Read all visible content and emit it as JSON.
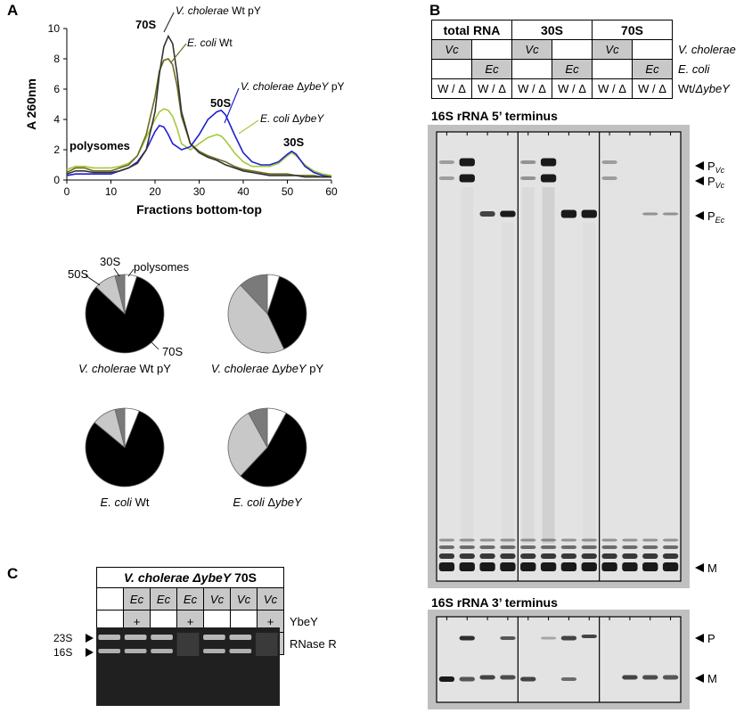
{
  "panels": {
    "a": "A",
    "b": "B",
    "c": "C"
  },
  "chart_data": {
    "type": "line",
    "xlabel": "Fractions bottom-top",
    "ylabel": "A 260nm",
    "xlim": [
      0,
      60
    ],
    "ylim": [
      0,
      10
    ],
    "xticks": [
      0,
      10,
      20,
      30,
      40,
      50,
      60
    ],
    "yticks": [
      0,
      2,
      4,
      6,
      8,
      10
    ],
    "annotations": [
      "70S",
      "50S",
      "30S",
      "polysomes"
    ],
    "series": [
      {
        "name": "V. cholerae Wt pY",
        "color": "#333333",
        "x": [
          0,
          2,
          4,
          6,
          8,
          10,
          12,
          14,
          16,
          18,
          20,
          21,
          22,
          23,
          24,
          25,
          26,
          28,
          30,
          32,
          34,
          36,
          38,
          40,
          42,
          44,
          46,
          48,
          50,
          52,
          54,
          56,
          58,
          60
        ],
        "y": [
          0.4,
          0.6,
          0.6,
          0.5,
          0.5,
          0.5,
          0.6,
          0.8,
          1.1,
          2.0,
          4.5,
          7.0,
          8.8,
          9.5,
          9.0,
          7.0,
          4.5,
          2.4,
          1.8,
          1.5,
          1.3,
          1.0,
          0.8,
          0.6,
          0.5,
          0.4,
          0.3,
          0.3,
          0.3,
          0.3,
          0.2,
          0.2,
          0.2,
          0.2
        ]
      },
      {
        "name": "E. coli Wt",
        "color": "#6b6b1e",
        "x": [
          0,
          2,
          4,
          6,
          8,
          10,
          12,
          14,
          16,
          18,
          20,
          21,
          22,
          23,
          24,
          25,
          26,
          28,
          30,
          32,
          34,
          36,
          38,
          40,
          42,
          44,
          46,
          48,
          50,
          52,
          54,
          56,
          58,
          60
        ],
        "y": [
          0.5,
          0.8,
          0.8,
          0.6,
          0.6,
          0.6,
          0.8,
          1.0,
          1.6,
          3.0,
          5.5,
          7.2,
          7.9,
          8.0,
          7.6,
          6.2,
          4.2,
          2.4,
          1.9,
          1.6,
          1.4,
          1.2,
          0.9,
          0.7,
          0.6,
          0.5,
          0.4,
          0.4,
          0.4,
          0.3,
          0.3,
          0.3,
          0.2,
          0.2
        ]
      },
      {
        "name": "V. cholerae ΔybeY pY",
        "color": "#1f1fd0",
        "x": [
          0,
          2,
          4,
          6,
          8,
          10,
          12,
          14,
          16,
          18,
          20,
          21,
          22,
          23,
          24,
          26,
          28,
          30,
          32,
          34,
          35,
          36,
          38,
          40,
          42,
          44,
          46,
          48,
          50,
          51,
          52,
          54,
          56,
          58,
          60
        ],
        "y": [
          0.3,
          0.4,
          0.4,
          0.4,
          0.4,
          0.4,
          0.6,
          0.8,
          1.2,
          2.0,
          3.2,
          3.6,
          3.5,
          3.0,
          2.4,
          2.0,
          2.2,
          3.0,
          4.0,
          4.5,
          4.6,
          4.3,
          3.0,
          1.8,
          1.2,
          1.0,
          1.0,
          1.2,
          1.7,
          1.9,
          1.7,
          0.9,
          0.5,
          0.3,
          0.2
        ]
      },
      {
        "name": "E. coli ΔybeY",
        "color": "#a6c93a",
        "x": [
          0,
          2,
          4,
          6,
          8,
          10,
          12,
          14,
          16,
          18,
          20,
          21,
          22,
          23,
          24,
          25,
          26,
          28,
          30,
          32,
          34,
          35,
          36,
          38,
          40,
          42,
          44,
          46,
          48,
          50,
          51,
          52,
          54,
          56,
          58,
          60
        ],
        "y": [
          0.7,
          0.9,
          0.9,
          0.8,
          0.8,
          0.8,
          0.9,
          1.1,
          1.6,
          2.8,
          4.0,
          4.5,
          4.7,
          4.6,
          4.2,
          3.4,
          2.4,
          2.0,
          2.4,
          2.8,
          3.0,
          2.9,
          2.6,
          1.8,
          1.2,
          0.9,
          0.9,
          0.9,
          1.1,
          1.6,
          1.8,
          1.6,
          1.0,
          0.6,
          0.4,
          0.3
        ]
      }
    ]
  },
  "pies": [
    {
      "label_sp": "V. cholerae",
      "label_rest": " Wt pY",
      "slices": [
        {
          "name": "polysomes",
          "value": 5,
          "color": "#ffffff"
        },
        {
          "name": "70S",
          "value": 82,
          "color": "#000000"
        },
        {
          "name": "50S",
          "value": 9,
          "color": "#c8c8c8"
        },
        {
          "name": "30S",
          "value": 4,
          "color": "#7a7a7a"
        }
      ]
    },
    {
      "label_sp": "V. cholerae",
      "label_rest": " ΔybeY pY",
      "slices": [
        {
          "name": "polysomes",
          "value": 5,
          "color": "#ffffff"
        },
        {
          "name": "70S",
          "value": 38,
          "color": "#000000"
        },
        {
          "name": "50S",
          "value": 45,
          "color": "#c8c8c8"
        },
        {
          "name": "30S",
          "value": 12,
          "color": "#7a7a7a"
        }
      ]
    },
    {
      "label_sp": "E. coli",
      "label_rest": " Wt",
      "slices": [
        {
          "name": "polysomes",
          "value": 6,
          "color": "#ffffff"
        },
        {
          "name": "70S",
          "value": 80,
          "color": "#000000"
        },
        {
          "name": "50S",
          "value": 10,
          "color": "#c8c8c8"
        },
        {
          "name": "30S",
          "value": 4,
          "color": "#7a7a7a"
        }
      ]
    },
    {
      "label_sp": "E. coli",
      "label_rest": " ΔybeY",
      "slices": [
        {
          "name": "polysomes",
          "value": 8,
          "color": "#ffffff"
        },
        {
          "name": "70S",
          "value": 54,
          "color": "#000000"
        },
        {
          "name": "50S",
          "value": 30,
          "color": "#c8c8c8"
        },
        {
          "name": "30S",
          "value": 8,
          "color": "#7a7a7a"
        }
      ]
    }
  ],
  "pie_labels": {
    "s50": "50S",
    "s30": "30S",
    "poly": "polysomes",
    "s70": "70S"
  },
  "panel_b": {
    "headers": [
      "total RNA",
      "30S",
      "70S"
    ],
    "vc": "Vc",
    "ec": "Ec",
    "wd": "W / Δ",
    "row_vc": "V. cholerae",
    "row_ec": "E. coli",
    "row_wt_a": "Wt/",
    "row_wt_b": "ΔybeY",
    "title5": "16S rRNA 5’ terminus",
    "title3": "16S rRNA 3’ terminus",
    "markers5": [
      {
        "main": "P",
        "sub": "Vc"
      },
      {
        "main": "P",
        "sub": "Vc"
      },
      {
        "main": "P",
        "sub": "Ec"
      },
      {
        "main": "M",
        "sub": ""
      }
    ],
    "markers3": [
      {
        "main": "P",
        "sub": ""
      },
      {
        "main": "M",
        "sub": ""
      }
    ]
  },
  "panel_c": {
    "title_sp": "V. cholerae ",
    "title_gene": "ΔybeY",
    "title_rest": " 70S",
    "strains": [
      "",
      "Ec",
      "Ec",
      "Ec",
      "Vc",
      "Vc",
      "Vc"
    ],
    "ybey": [
      "",
      "+",
      "",
      "+",
      "",
      "",
      "+"
    ],
    "rnaser": [
      "",
      "",
      "+",
      "+",
      "",
      "+",
      "+"
    ],
    "row_ybey": "YbeY",
    "row_rnaser": "RNase R",
    "bands": [
      "23S",
      "16S"
    ]
  }
}
